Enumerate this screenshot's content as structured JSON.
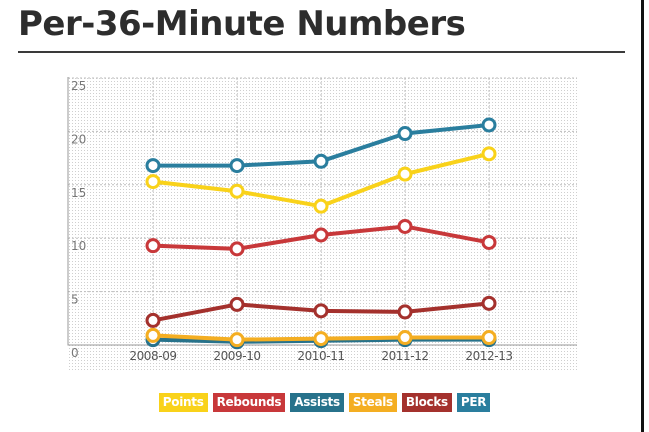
{
  "title": "Per-36-Minute Numbers",
  "chart_data": {
    "type": "line",
    "categories": [
      "2008-09",
      "2009-10",
      "2010-11",
      "2011-12",
      "2012-13"
    ],
    "y_ticks": [
      "25",
      "20",
      "15",
      "10",
      "5",
      "0"
    ],
    "ylim": [
      0,
      25
    ],
    "grid": true,
    "legend_position": "bottom",
    "series": [
      {
        "name": "Points",
        "color": "#f9d21a",
        "values": [
          15.3,
          14.4,
          13.0,
          16.0,
          17.9
        ]
      },
      {
        "name": "Rebounds",
        "color": "#c8383a",
        "values": [
          9.3,
          9.0,
          10.3,
          11.1,
          9.6
        ]
      },
      {
        "name": "Assists",
        "color": "#27728b",
        "values": [
          0.5,
          0.3,
          0.4,
          0.5,
          0.5
        ]
      },
      {
        "name": "Steals",
        "color": "#f4ae22",
        "values": [
          0.9,
          0.5,
          0.6,
          0.7,
          0.7
        ]
      },
      {
        "name": "Blocks",
        "color": "#a4312d",
        "values": [
          2.3,
          3.8,
          3.2,
          3.1,
          3.9
        ]
      },
      {
        "name": "PER",
        "color": "#2a7e9e",
        "values": [
          16.8,
          16.8,
          17.2,
          19.8,
          20.6
        ]
      }
    ]
  }
}
